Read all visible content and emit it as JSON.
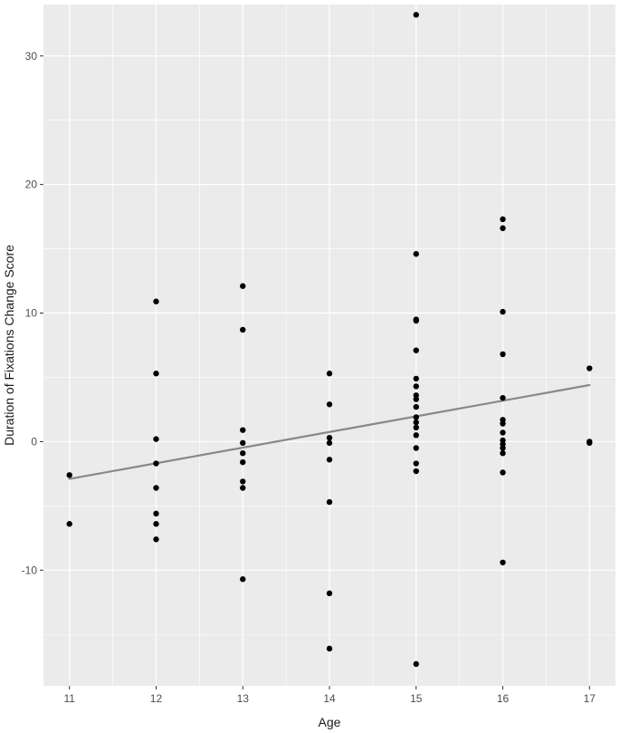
{
  "chart_data": {
    "type": "scatter",
    "title": "",
    "xlabel": "Age",
    "ylabel": "Duration of Fixations Change Score",
    "xlim": [
      10.7,
      17.3
    ],
    "ylim": [
      -19,
      34
    ],
    "x_ticks": [
      11,
      12,
      13,
      14,
      15,
      16,
      17
    ],
    "y_ticks": [
      -10,
      0,
      10,
      20,
      30
    ],
    "grid": true,
    "legend": "none",
    "colors": {
      "panel": "#ebebeb",
      "grid": "#ffffff",
      "point": "#000000",
      "line": "#888888"
    },
    "points": [
      {
        "x": 11,
        "y": -2.6
      },
      {
        "x": 11,
        "y": -6.4
      },
      {
        "x": 12,
        "y": 10.9
      },
      {
        "x": 12,
        "y": 5.3
      },
      {
        "x": 12,
        "y": 0.2
      },
      {
        "x": 12,
        "y": -1.7
      },
      {
        "x": 12,
        "y": -3.6
      },
      {
        "x": 12,
        "y": -5.6
      },
      {
        "x": 12,
        "y": -6.4
      },
      {
        "x": 12,
        "y": -7.6
      },
      {
        "x": 13,
        "y": 12.1
      },
      {
        "x": 13,
        "y": 8.7
      },
      {
        "x": 13,
        "y": 0.9
      },
      {
        "x": 13,
        "y": -0.1
      },
      {
        "x": 13,
        "y": -0.9
      },
      {
        "x": 13,
        "y": -1.6
      },
      {
        "x": 13,
        "y": -3.1
      },
      {
        "x": 13,
        "y": -3.6
      },
      {
        "x": 13,
        "y": -10.7
      },
      {
        "x": 14,
        "y": 5.3
      },
      {
        "x": 14,
        "y": 2.9
      },
      {
        "x": 14,
        "y": 0.3
      },
      {
        "x": 14,
        "y": -0.1
      },
      {
        "x": 14,
        "y": -1.4
      },
      {
        "x": 14,
        "y": -4.7
      },
      {
        "x": 14,
        "y": -11.8
      },
      {
        "x": 14,
        "y": -16.1
      },
      {
        "x": 15,
        "y": 33.2
      },
      {
        "x": 15,
        "y": 14.6
      },
      {
        "x": 15,
        "y": 9.5
      },
      {
        "x": 15,
        "y": 9.4
      },
      {
        "x": 15,
        "y": 7.1
      },
      {
        "x": 15,
        "y": 4.9
      },
      {
        "x": 15,
        "y": 4.3
      },
      {
        "x": 15,
        "y": 3.6
      },
      {
        "x": 15,
        "y": 3.3
      },
      {
        "x": 15,
        "y": 2.7
      },
      {
        "x": 15,
        "y": 1.9
      },
      {
        "x": 15,
        "y": 1.5
      },
      {
        "x": 15,
        "y": 1.1
      },
      {
        "x": 15,
        "y": 0.5
      },
      {
        "x": 15,
        "y": -0.5
      },
      {
        "x": 15,
        "y": -1.7
      },
      {
        "x": 15,
        "y": -2.3
      },
      {
        "x": 15,
        "y": -17.3
      },
      {
        "x": 16,
        "y": 17.3
      },
      {
        "x": 16,
        "y": 16.6
      },
      {
        "x": 16,
        "y": 10.1
      },
      {
        "x": 16,
        "y": 6.8
      },
      {
        "x": 16,
        "y": 3.4
      },
      {
        "x": 16,
        "y": 1.7
      },
      {
        "x": 16,
        "y": 1.4
      },
      {
        "x": 16,
        "y": 0.7
      },
      {
        "x": 16,
        "y": 0.1
      },
      {
        "x": 16,
        "y": -0.2
      },
      {
        "x": 16,
        "y": -0.5
      },
      {
        "x": 16,
        "y": -0.9
      },
      {
        "x": 16,
        "y": -2.4
      },
      {
        "x": 16,
        "y": -9.4
      },
      {
        "x": 17,
        "y": 5.7
      },
      {
        "x": 17,
        "y": 0.0
      },
      {
        "x": 17,
        "y": -0.1
      }
    ],
    "trend_line": {
      "x": [
        11,
        17
      ],
      "y": [
        -2.9,
        4.4
      ]
    }
  }
}
